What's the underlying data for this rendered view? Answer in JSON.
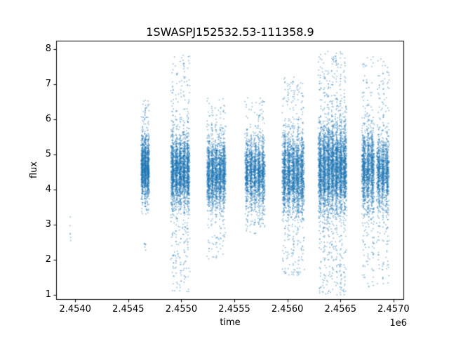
{
  "title": "1SWASPJ152532.53-111358.9",
  "xlabel": "time",
  "ylabel": "flux",
  "offset_label": "1e6",
  "chart_data": {
    "type": "scatter",
    "title": "1SWASPJ152532.53-111358.9",
    "xlabel": "time",
    "ylabel": "flux",
    "x_offset_factor": "1e6",
    "xlim": [
      2453820,
      2457100
    ],
    "ylim": [
      0.86,
      8.25
    ],
    "x_ticks": [
      2454000,
      2454500,
      2455000,
      2455500,
      2456000,
      2456500,
      2457000
    ],
    "x_tick_labels": [
      "2.4540",
      "2.4545",
      "2.4550",
      "2.4555",
      "2.4560",
      "2.4565",
      "2.4570"
    ],
    "y_ticks": [
      1,
      2,
      3,
      4,
      5,
      6,
      7,
      8
    ],
    "y_tick_labels": [
      "1",
      "2",
      "3",
      "4",
      "5",
      "6",
      "7",
      "8"
    ],
    "grid": false,
    "legend": null,
    "point_color": "#1f77b4",
    "point_alpha": 0.55,
    "marker_size_px": 1.5,
    "axes_color": "#000000",
    "background_color": "#ffffff",
    "seed": 42,
    "clusters": [
      {
        "name": "isolated-early-points",
        "x_min": 2453945,
        "x_max": 2453960,
        "count": 6,
        "columns": 1,
        "y_core": 2.8,
        "y_sd": 0.28,
        "y_min": 2.4,
        "y_max": 3.25,
        "tail_frac": 0.0
      },
      {
        "name": "night-1",
        "x_min": 2454620,
        "x_max": 2454700,
        "count": 1400,
        "columns": 3,
        "y_core": 4.62,
        "y_sd": 0.42,
        "y_min": 3.3,
        "y_max": 6.55,
        "tail_frac": 0.12
      },
      {
        "name": "night-1-low-spur",
        "x_min": 2454648,
        "x_max": 2454668,
        "count": 7,
        "columns": 1,
        "y_core": 2.45,
        "y_sd": 0.12,
        "y_min": 2.2,
        "y_max": 2.65,
        "tail_frac": 0.0
      },
      {
        "name": "night-2",
        "x_min": 2454900,
        "x_max": 2455080,
        "count": 2600,
        "columns": 5,
        "y_core": 4.55,
        "y_sd": 0.5,
        "y_min": 1.05,
        "y_max": 7.85,
        "tail_frac": 0.17
      },
      {
        "name": "night-3",
        "x_min": 2455240,
        "x_max": 2455420,
        "count": 2200,
        "columns": 5,
        "y_core": 4.45,
        "y_sd": 0.48,
        "y_min": 2.0,
        "y_max": 6.65,
        "tail_frac": 0.14
      },
      {
        "name": "night-4",
        "x_min": 2455600,
        "x_max": 2455790,
        "count": 2000,
        "columns": 5,
        "y_core": 4.5,
        "y_sd": 0.48,
        "y_min": 2.75,
        "y_max": 6.65,
        "tail_frac": 0.13
      },
      {
        "name": "night-5",
        "x_min": 2455950,
        "x_max": 2456160,
        "count": 2600,
        "columns": 5,
        "y_core": 4.45,
        "y_sd": 0.55,
        "y_min": 1.55,
        "y_max": 7.25,
        "tail_frac": 0.17
      },
      {
        "name": "night-6",
        "x_min": 2456290,
        "x_max": 2456560,
        "count": 4200,
        "columns": 7,
        "y_core": 4.6,
        "y_sd": 0.6,
        "y_min": 1.0,
        "y_max": 7.95,
        "tail_frac": 0.19
      },
      {
        "name": "night-7a",
        "x_min": 2456700,
        "x_max": 2456820,
        "count": 1500,
        "columns": 3,
        "y_core": 4.55,
        "y_sd": 0.52,
        "y_min": 1.2,
        "y_max": 7.8,
        "tail_frac": 0.17
      },
      {
        "name": "night-7b",
        "x_min": 2456840,
        "x_max": 2456960,
        "count": 1300,
        "columns": 3,
        "y_core": 4.5,
        "y_sd": 0.5,
        "y_min": 1.3,
        "y_max": 7.75,
        "tail_frac": 0.16
      }
    ]
  }
}
